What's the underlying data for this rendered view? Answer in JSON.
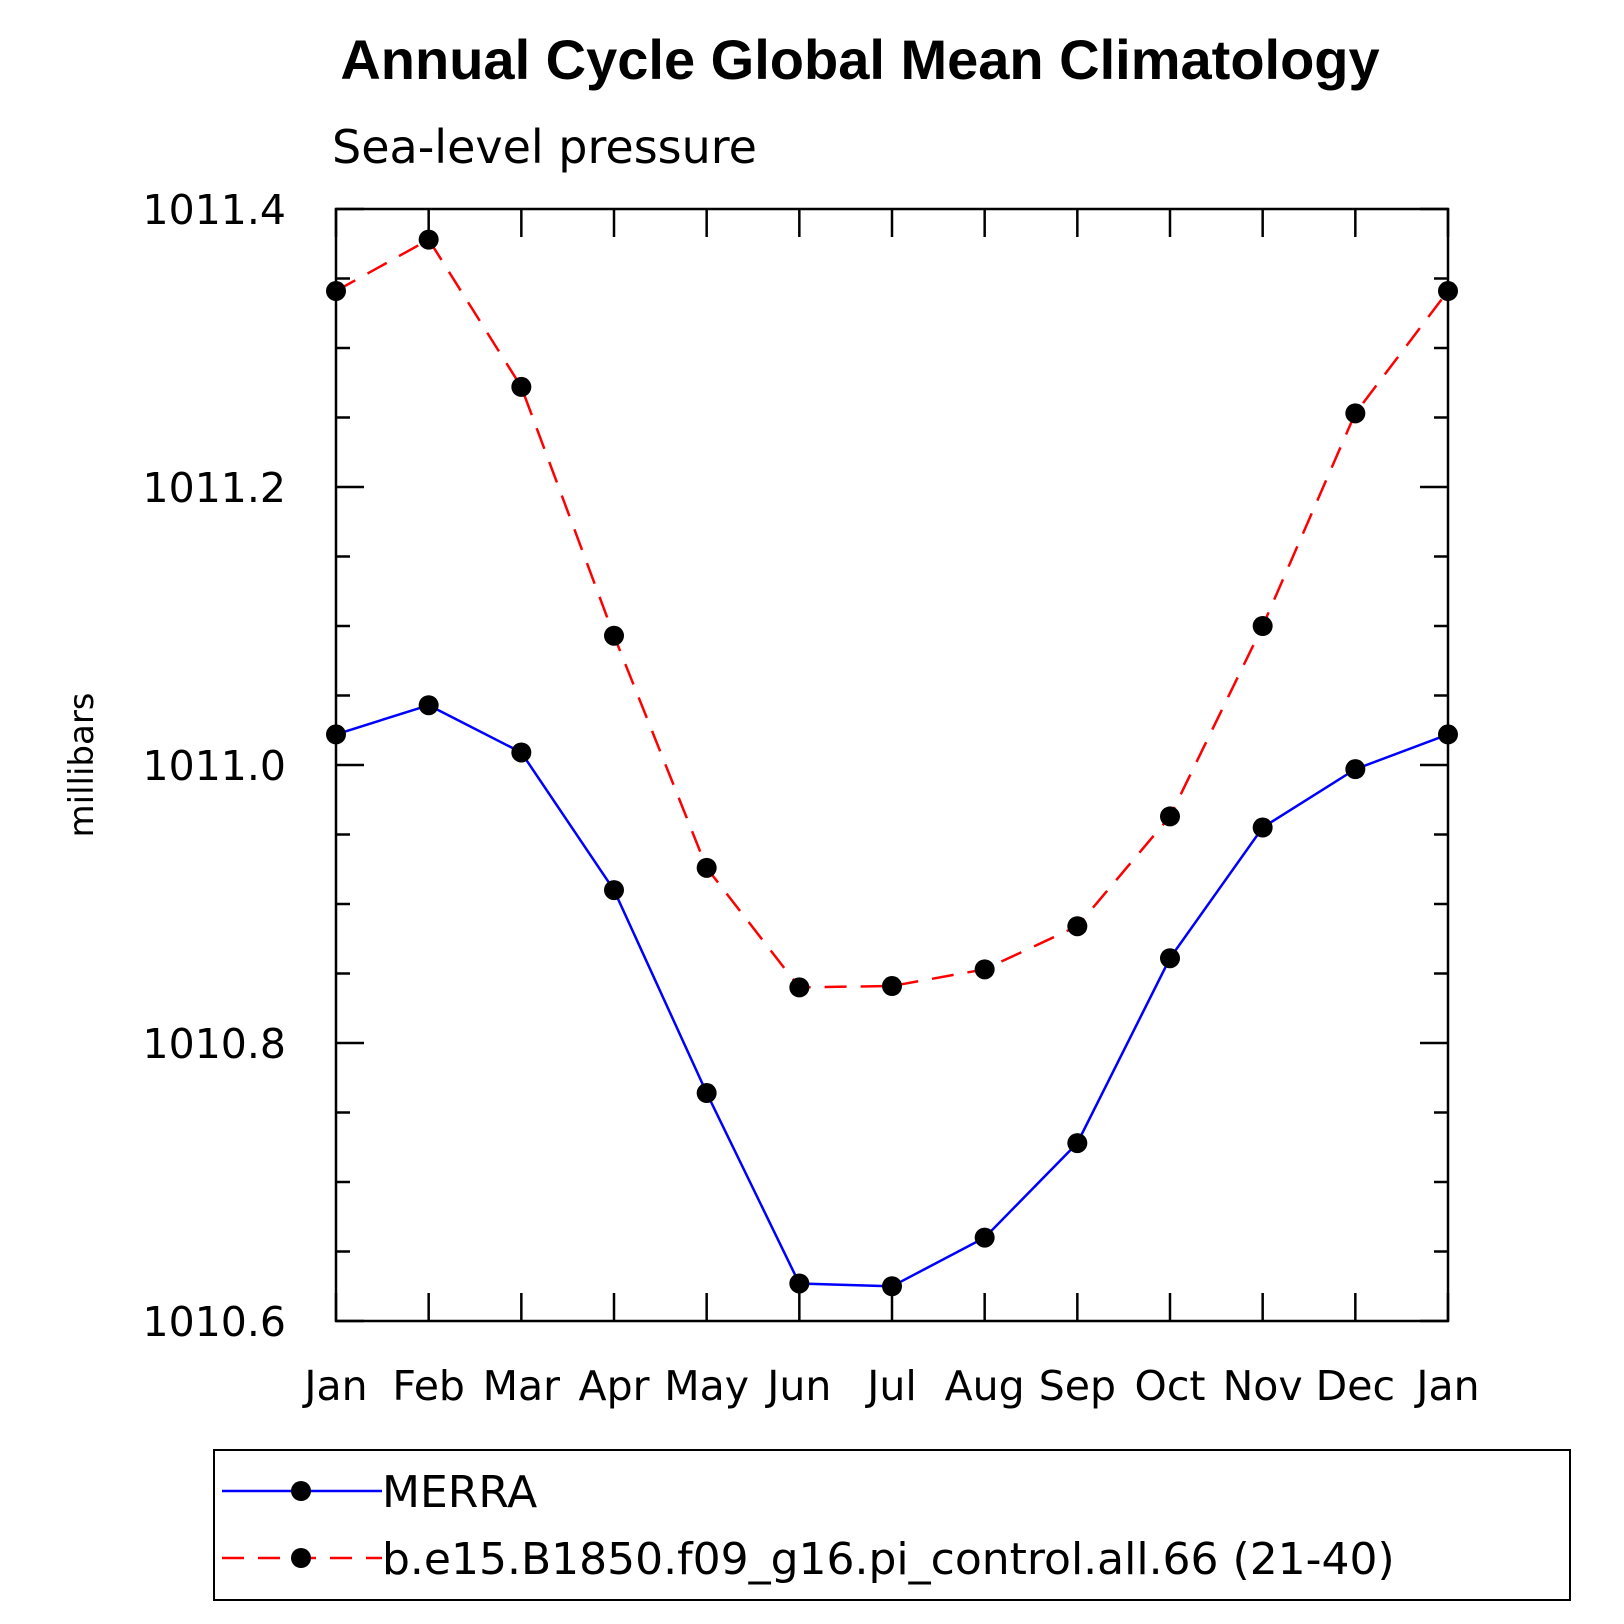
{
  "chart_data": {
    "type": "line",
    "title": "Annual Cycle Global Mean Climatology",
    "subtitle": "Sea-level pressure",
    "ylabel": "millibars",
    "xlabel": "",
    "categories": [
      "Jan",
      "Feb",
      "Mar",
      "Apr",
      "May",
      "Jun",
      "Jul",
      "Aug",
      "Sep",
      "Oct",
      "Nov",
      "Dec",
      "Jan"
    ],
    "ylim": [
      1010.6,
      1011.4
    ],
    "yticks": [
      "1010.6",
      "1010.8",
      "1011.0",
      "1011.2",
      "1011.4"
    ],
    "ytick_values": [
      1010.6,
      1010.8,
      1011.0,
      1011.2,
      1011.4
    ],
    "series": [
      {
        "name": "MERRA",
        "color": "#0000ff",
        "dash": "solid",
        "marker": "dot",
        "values": [
          1011.022,
          1011.043,
          1011.009,
          1010.91,
          1010.764,
          1010.627,
          1010.625,
          1010.66,
          1010.728,
          1010.861,
          1010.955,
          1010.997,
          1011.022
        ]
      },
      {
        "name": "b.e15.B1850.f09_g16.pi_control.all.66 (21-40)",
        "color": "#ff0000",
        "dash": "dashed",
        "marker": "dot",
        "values": [
          1011.341,
          1011.378,
          1011.272,
          1011.093,
          1010.926,
          1010.84,
          1010.841,
          1010.853,
          1010.884,
          1010.963,
          1011.1,
          1011.253,
          1011.341
        ]
      }
    ],
    "legend_position": "bottom",
    "grid": false
  }
}
